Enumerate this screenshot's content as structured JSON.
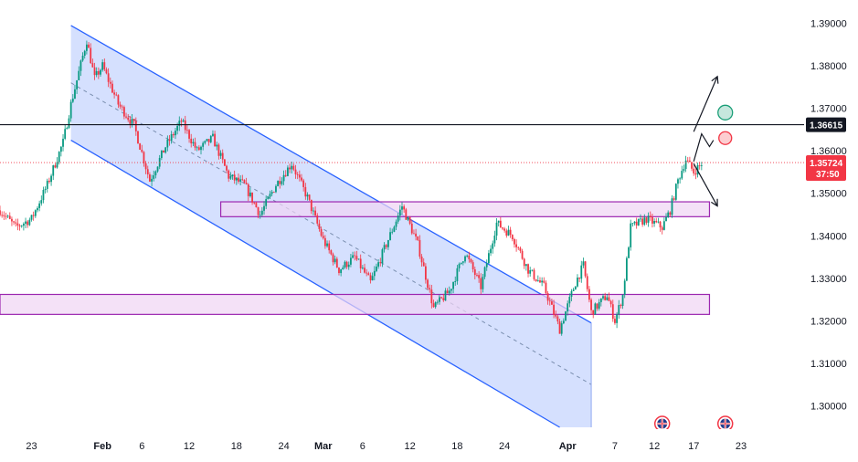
{
  "chart_data": {
    "type": "candlestick",
    "instrument_axis": "price",
    "ylim": [
      1.2945,
      1.3955
    ],
    "y_ticks": [
      "1.39000",
      "1.38000",
      "1.37000",
      "1.36000",
      "1.35000",
      "1.34000",
      "1.33000",
      "1.32000",
      "1.31000",
      "1.30000"
    ],
    "x_ticks": [
      {
        "label": "23",
        "day": -8,
        "month": false
      },
      {
        "label": "Feb",
        "day": 1,
        "month": true
      },
      {
        "label": "6",
        "day": 6,
        "month": false
      },
      {
        "label": "12",
        "day": 12,
        "month": false
      },
      {
        "label": "18",
        "day": 18,
        "month": false
      },
      {
        "label": "24",
        "day": 24,
        "month": false
      },
      {
        "label": "Mar",
        "day": 29,
        "month": true
      },
      {
        "label": "6",
        "day": 34,
        "month": false
      },
      {
        "label": "12",
        "day": 40,
        "month": false
      },
      {
        "label": "18",
        "day": 46,
        "month": false
      },
      {
        "label": "24",
        "day": 52,
        "month": false
      },
      {
        "label": "Apr",
        "day": 60,
        "month": true
      },
      {
        "label": "7",
        "day": 66,
        "month": false
      },
      {
        "label": "12",
        "day": 71,
        "month": false
      },
      {
        "label": "17",
        "day": 76,
        "month": false
      },
      {
        "label": "23",
        "day": 82,
        "month": false
      }
    ],
    "xlim": [
      -12,
      90
    ],
    "colors": {
      "up": "#089981",
      "down": "#f23645",
      "channel": "#2962ff",
      "channel_fill": "#c7d5fd",
      "zone_fill": "#efd4f3",
      "zone_stroke": "#9c27b0",
      "current_price": "#f23645"
    },
    "horizontal_line": {
      "price": 1.36615,
      "label": "1.36615"
    },
    "current_price": {
      "price": 1.35724,
      "label": "1.35724",
      "countdown": "37:50"
    },
    "channel": {
      "upper": [
        [
          -3,
          1.3895
        ],
        [
          63,
          1.3195
        ]
      ],
      "lower": [
        [
          -3,
          1.3625
        ],
        [
          59,
          1.2935
        ]
      ],
      "middle": [
        [
          -3,
          1.376
        ],
        [
          63,
          1.305
        ]
      ],
      "end_day": 63
    },
    "zones": [
      {
        "from_day": 16,
        "to_day": 78,
        "low": 1.3445,
        "high": 1.348
      },
      {
        "from_day": -12,
        "to_day": 78,
        "low": 1.3215,
        "high": 1.3262
      }
    ],
    "path_anchors": [
      [
        -12,
        1.346
      ],
      [
        -10,
        1.342
      ],
      [
        -8,
        1.344
      ],
      [
        -6,
        1.352
      ],
      [
        -4,
        1.362
      ],
      [
        -3,
        1.371
      ],
      [
        -1,
        1.386
      ],
      [
        0,
        1.377
      ],
      [
        1,
        1.38
      ],
      [
        3,
        1.371
      ],
      [
        5,
        1.366
      ],
      [
        7,
        1.353
      ],
      [
        9,
        1.361
      ],
      [
        11,
        1.367
      ],
      [
        13,
        1.36
      ],
      [
        15,
        1.363
      ],
      [
        17,
        1.354
      ],
      [
        19,
        1.352
      ],
      [
        21,
        1.345
      ],
      [
        23,
        1.352
      ],
      [
        25,
        1.357
      ],
      [
        27,
        1.349
      ],
      [
        29,
        1.339
      ],
      [
        31,
        1.332
      ],
      [
        33,
        1.335
      ],
      [
        35,
        1.329
      ],
      [
        37,
        1.338
      ],
      [
        39,
        1.347
      ],
      [
        41,
        1.338
      ],
      [
        43,
        1.323
      ],
      [
        45,
        1.327
      ],
      [
        47,
        1.336
      ],
      [
        49,
        1.328
      ],
      [
        51,
        1.343
      ],
      [
        53,
        1.34
      ],
      [
        55,
        1.332
      ],
      [
        57,
        1.328
      ],
      [
        59,
        1.318
      ],
      [
        61,
        1.329
      ],
      [
        62,
        1.333
      ],
      [
        63,
        1.322
      ],
      [
        65,
        1.326
      ],
      [
        66,
        1.32
      ],
      [
        67,
        1.326
      ],
      [
        68,
        1.342
      ],
      [
        70,
        1.344
      ],
      [
        72,
        1.342
      ],
      [
        73,
        1.346
      ],
      [
        74,
        1.353
      ],
      [
        75,
        1.358
      ],
      [
        76,
        1.355
      ],
      [
        77,
        1.357
      ]
    ],
    "arrows": [
      {
        "from": [
          76,
          1.3645
        ],
        "to": [
          79,
          1.3775
        ]
      },
      {
        "from": [
          76,
          1.357
        ],
        "to": [
          79,
          1.347
        ]
      }
    ],
    "markers": [
      {
        "kind": "target",
        "day": 80,
        "price": 1.369,
        "color": "#1a9e77"
      },
      {
        "kind": "stop",
        "day": 80,
        "price": 1.363,
        "color": "#f23645"
      }
    ],
    "events": [
      {
        "name": "uk-flag-event",
        "day": 72
      },
      {
        "name": "uk-flag-event",
        "day": 80
      }
    ]
  }
}
